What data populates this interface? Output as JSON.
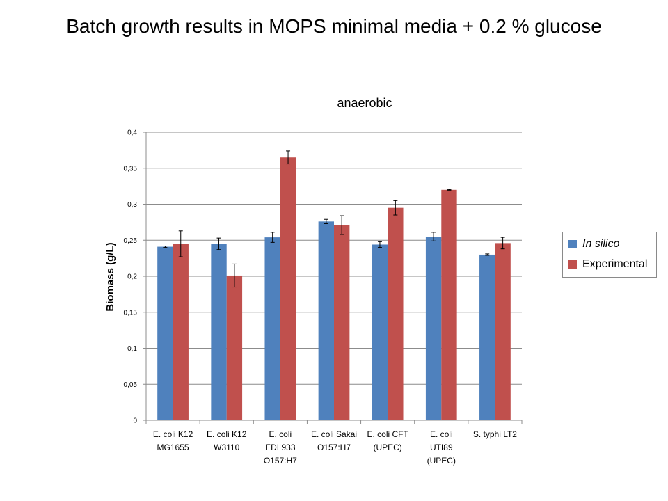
{
  "slide": {
    "title": "Batch growth results in MOPS minimal media + 0.2 % glucose"
  },
  "chart_data": {
    "type": "bar",
    "title": "anaerobic",
    "xlabel": "",
    "ylabel": "Biomass (g/L)",
    "ylim": [
      0,
      0.4
    ],
    "yticks": [
      "0",
      "0,05",
      "0,1",
      "0,15",
      "0,2",
      "0,25",
      "0,3",
      "0,35",
      "0,4"
    ],
    "grid": true,
    "legend_position": "right",
    "categories": [
      [
        "E. coli K12",
        "MG1655"
      ],
      [
        "E. coli K12",
        "W3110"
      ],
      [
        "E. coli",
        "EDL933",
        "O157:H7"
      ],
      [
        "E. coli Sakai",
        "O157:H7"
      ],
      [
        "E. coli CFT",
        "(UPEC)"
      ],
      [
        "E. coli",
        "UTI89",
        "(UPEC)"
      ],
      [
        "S. typhi LT2"
      ]
    ],
    "series": [
      {
        "name": "In silico",
        "color": "#4f81bd",
        "values": [
          0.241,
          0.245,
          0.254,
          0.276,
          0.244,
          0.255,
          0.23
        ],
        "errors": [
          0.001,
          0.008,
          0.007,
          0.003,
          0.004,
          0.006,
          0.001
        ]
      },
      {
        "name": "Experimental",
        "color": "#c0504d",
        "values": [
          0.245,
          0.201,
          0.365,
          0.271,
          0.295,
          0.32,
          0.246
        ],
        "errors": [
          0.018,
          0.016,
          0.009,
          0.013,
          0.01,
          0.0005,
          0.008
        ]
      }
    ]
  }
}
